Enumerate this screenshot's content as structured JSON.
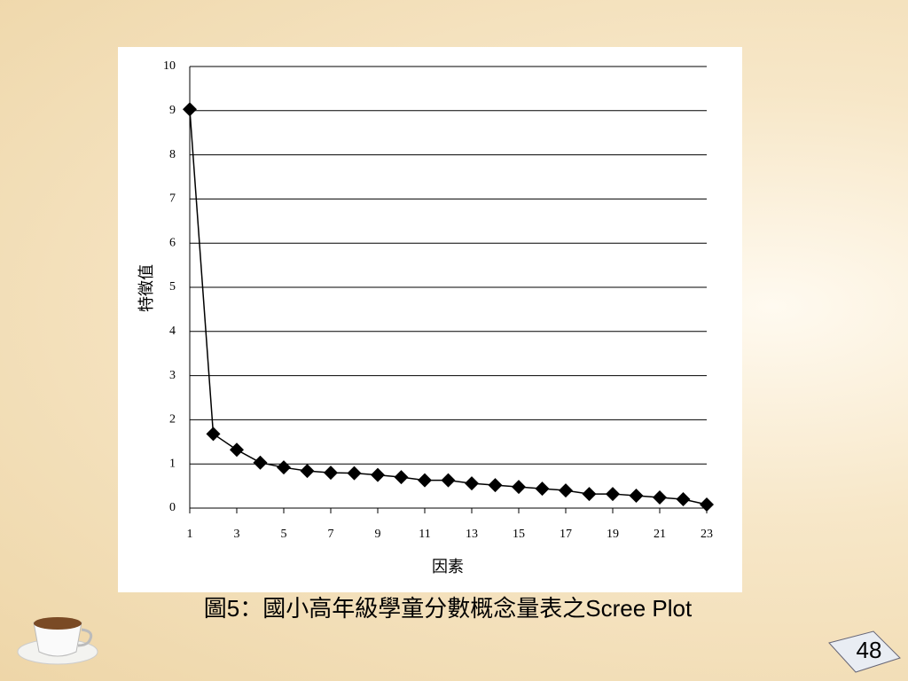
{
  "chart_data": {
    "type": "line",
    "x": [
      1,
      2,
      3,
      4,
      5,
      6,
      7,
      8,
      9,
      10,
      11,
      12,
      13,
      14,
      15,
      16,
      17,
      18,
      19,
      20,
      21,
      22,
      23
    ],
    "values": [
      9.03,
      1.68,
      1.32,
      1.03,
      0.92,
      0.84,
      0.8,
      0.79,
      0.75,
      0.7,
      0.63,
      0.63,
      0.56,
      0.52,
      0.48,
      0.44,
      0.4,
      0.32,
      0.32,
      0.28,
      0.24,
      0.2,
      0.08
    ],
    "color": "#000000",
    "xlim": [
      1,
      23
    ],
    "xticks": [
      1,
      3,
      5,
      7,
      9,
      11,
      13,
      15,
      17,
      19,
      21,
      23
    ],
    "ylim": [
      0,
      10
    ],
    "yticks": [
      0,
      1,
      2,
      3,
      4,
      5,
      6,
      7,
      8,
      9,
      10
    ],
    "grid": true,
    "x_label": "因素",
    "y_label": "特徵值"
  },
  "caption": "圖5：國小高年級學童分數概念量表之Scree Plot",
  "page_number": "48"
}
